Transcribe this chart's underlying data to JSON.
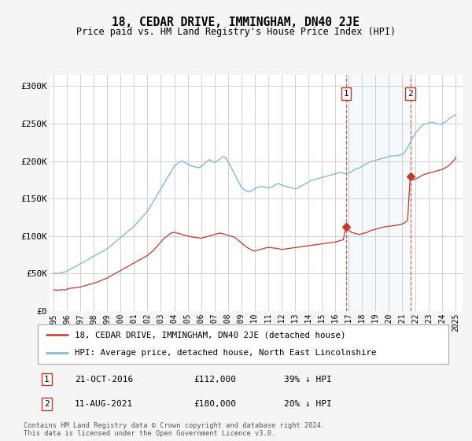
{
  "title": "18, CEDAR DRIVE, IMMINGHAM, DN40 2JE",
  "subtitle": "Price paid vs. HM Land Registry's House Price Index (HPI)",
  "yticks": [
    0,
    50000,
    100000,
    150000,
    200000,
    250000,
    300000
  ],
  "ytick_labels": [
    "£0",
    "£50K",
    "£100K",
    "£150K",
    "£200K",
    "£250K",
    "£300K"
  ],
  "ylim": [
    0,
    315000
  ],
  "xlim": [
    1994.7,
    2025.5
  ],
  "hpi_color": "#7ab3d4",
  "sale_color": "#c0392b",
  "background_color": "#f5f5f5",
  "plot_bg": "#ffffff",
  "grid_color": "#d0d0d0",
  "sale1_x": 2016.8,
  "sale1_y": 112000,
  "sale2_x": 2021.6,
  "sale2_y": 180000,
  "sale1_label": "1",
  "sale2_label": "2",
  "legend_line1": "18, CEDAR DRIVE, IMMINGHAM, DN40 2JE (detached house)",
  "legend_line2": "HPI: Average price, detached house, North East Lincolnshire",
  "annotation1": [
    "1",
    "21-OCT-2016",
    "£112,000",
    "39% ↓ HPI"
  ],
  "annotation2": [
    "2",
    "11-AUG-2021",
    "£180,000",
    "20% ↓ HPI"
  ],
  "footer": "Contains HM Land Registry data © Crown copyright and database right 2024.\nThis data is licensed under the Open Government Licence v3.0.",
  "hpi_x": [
    1995.0,
    1995.1,
    1995.2,
    1995.3,
    1995.4,
    1995.5,
    1995.6,
    1995.7,
    1995.8,
    1995.9,
    1996.0,
    1996.1,
    1996.2,
    1996.3,
    1996.4,
    1996.5,
    1996.6,
    1996.7,
    1996.8,
    1996.9,
    1997.0,
    1997.2,
    1997.4,
    1997.6,
    1997.8,
    1998.0,
    1998.2,
    1998.4,
    1998.6,
    1998.8,
    1999.0,
    1999.2,
    1999.4,
    1999.6,
    1999.8,
    2000.0,
    2000.2,
    2000.4,
    2000.6,
    2000.8,
    2001.0,
    2001.2,
    2001.4,
    2001.6,
    2001.8,
    2002.0,
    2002.2,
    2002.4,
    2002.6,
    2002.8,
    2003.0,
    2003.2,
    2003.4,
    2003.6,
    2003.8,
    2004.0,
    2004.2,
    2004.4,
    2004.6,
    2004.8,
    2005.0,
    2005.2,
    2005.4,
    2005.6,
    2005.8,
    2006.0,
    2006.2,
    2006.4,
    2006.6,
    2006.8,
    2007.0,
    2007.2,
    2007.4,
    2007.6,
    2007.8,
    2008.0,
    2008.2,
    2008.4,
    2008.6,
    2008.8,
    2009.0,
    2009.2,
    2009.4,
    2009.6,
    2009.8,
    2010.0,
    2010.2,
    2010.4,
    2010.6,
    2010.8,
    2011.0,
    2011.2,
    2011.4,
    2011.6,
    2011.8,
    2012.0,
    2012.2,
    2012.4,
    2012.6,
    2012.8,
    2013.0,
    2013.2,
    2013.4,
    2013.6,
    2013.8,
    2014.0,
    2014.2,
    2014.4,
    2014.6,
    2014.8,
    2015.0,
    2015.2,
    2015.4,
    2015.6,
    2015.8,
    2016.0,
    2016.2,
    2016.4,
    2016.6,
    2016.8,
    2017.0,
    2017.2,
    2017.4,
    2017.6,
    2017.8,
    2018.0,
    2018.2,
    2018.4,
    2018.6,
    2018.8,
    2019.0,
    2019.2,
    2019.4,
    2019.6,
    2019.8,
    2020.0,
    2020.2,
    2020.4,
    2020.6,
    2020.8,
    2021.0,
    2021.2,
    2021.4,
    2021.6,
    2021.8,
    2022.0,
    2022.2,
    2022.4,
    2022.6,
    2022.8,
    2023.0,
    2023.2,
    2023.4,
    2023.6,
    2023.8,
    2024.0,
    2024.2,
    2024.4,
    2024.6,
    2024.8,
    2025.0
  ],
  "hpi_y": [
    50000,
    50500,
    50200,
    49800,
    50100,
    50500,
    51000,
    51500,
    52000,
    52500,
    53000,
    54000,
    55000,
    56000,
    57000,
    58000,
    59000,
    60000,
    61000,
    62000,
    63000,
    65000,
    67000,
    69000,
    71000,
    73000,
    75000,
    77000,
    79000,
    81000,
    83000,
    86000,
    89000,
    92000,
    95000,
    98000,
    101000,
    104000,
    107000,
    110000,
    113000,
    117000,
    121000,
    125000,
    129000,
    133000,
    139000,
    145000,
    151000,
    157000,
    163000,
    169000,
    175000,
    181000,
    187000,
    193000,
    196000,
    199000,
    200000,
    198000,
    196000,
    194000,
    193000,
    192000,
    191000,
    193000,
    196000,
    199000,
    202000,
    200000,
    198000,
    200000,
    203000,
    206000,
    205000,
    200000,
    193000,
    186000,
    179000,
    172000,
    165000,
    162000,
    160000,
    159000,
    161000,
    163000,
    165000,
    166000,
    166000,
    165000,
    164000,
    165000,
    167000,
    169000,
    170000,
    168000,
    167000,
    166000,
    165000,
    164000,
    163000,
    164000,
    166000,
    168000,
    170000,
    172000,
    174000,
    175000,
    176000,
    177000,
    178000,
    179000,
    180000,
    181000,
    182000,
    183000,
    184000,
    185000,
    184000,
    183000,
    184000,
    186000,
    188000,
    190000,
    191000,
    193000,
    195000,
    197000,
    199000,
    200000,
    201000,
    202000,
    203000,
    204000,
    205000,
    206000,
    207000,
    207000,
    207000,
    208000,
    209000,
    212000,
    218000,
    225000,
    232000,
    238000,
    242000,
    246000,
    249000,
    250000,
    251000,
    252000,
    251000,
    250000,
    249000,
    250000,
    252000,
    255000,
    258000,
    260000,
    262000
  ],
  "sale_x": [
    1995.0,
    1995.1,
    1995.2,
    1995.3,
    1995.4,
    1995.5,
    1995.6,
    1995.7,
    1995.8,
    1995.9,
    1996.0,
    1996.2,
    1996.4,
    1996.6,
    1996.8,
    1997.0,
    1997.2,
    1997.4,
    1997.6,
    1997.8,
    1998.0,
    1998.2,
    1998.4,
    1998.6,
    1998.8,
    1999.0,
    1999.2,
    1999.4,
    1999.6,
    1999.8,
    2000.0,
    2000.2,
    2000.4,
    2000.6,
    2000.8,
    2001.0,
    2001.2,
    2001.4,
    2001.6,
    2001.8,
    2002.0,
    2002.2,
    2002.4,
    2002.6,
    2002.8,
    2003.0,
    2003.2,
    2003.4,
    2003.6,
    2003.8,
    2004.0,
    2004.2,
    2004.4,
    2004.6,
    2004.8,
    2005.0,
    2005.2,
    2005.4,
    2005.6,
    2005.8,
    2006.0,
    2006.2,
    2006.4,
    2006.6,
    2006.8,
    2007.0,
    2007.2,
    2007.4,
    2007.6,
    2007.8,
    2008.0,
    2008.2,
    2008.4,
    2008.6,
    2008.8,
    2009.0,
    2009.2,
    2009.4,
    2009.6,
    2009.8,
    2010.0,
    2010.2,
    2010.4,
    2010.6,
    2010.8,
    2011.0,
    2011.2,
    2011.4,
    2011.6,
    2011.8,
    2012.0,
    2012.2,
    2012.4,
    2012.6,
    2012.8,
    2013.0,
    2013.2,
    2013.4,
    2013.6,
    2013.8,
    2014.0,
    2014.2,
    2014.4,
    2014.6,
    2014.8,
    2015.0,
    2015.2,
    2015.4,
    2015.6,
    2015.8,
    2016.0,
    2016.2,
    2016.4,
    2016.6,
    2016.8,
    2017.0,
    2017.2,
    2017.4,
    2017.6,
    2017.8,
    2018.0,
    2018.2,
    2018.4,
    2018.6,
    2018.8,
    2019.0,
    2019.2,
    2019.4,
    2019.6,
    2019.8,
    2020.0,
    2020.2,
    2020.4,
    2020.6,
    2020.8,
    2021.0,
    2021.2,
    2021.4,
    2021.6,
    2021.8,
    2022.0,
    2022.2,
    2022.4,
    2022.6,
    2022.8,
    2023.0,
    2023.2,
    2023.4,
    2023.6,
    2023.8,
    2024.0,
    2024.2,
    2024.4,
    2024.6,
    2024.8,
    2025.0
  ],
  "sale_y": [
    28000,
    28200,
    27800,
    27500,
    27800,
    28000,
    28500,
    28200,
    27900,
    28100,
    29000,
    30000,
    30500,
    31000,
    31500,
    32000,
    33000,
    34000,
    35000,
    36000,
    37000,
    38000,
    39500,
    41000,
    42500,
    44000,
    46000,
    48000,
    50000,
    52000,
    54000,
    56000,
    58000,
    60000,
    62000,
    64000,
    66000,
    68000,
    70000,
    72000,
    74000,
    77000,
    80000,
    84000,
    88000,
    92000,
    96000,
    99000,
    102000,
    104000,
    105000,
    104000,
    103000,
    102000,
    101000,
    100000,
    99000,
    98500,
    98000,
    97500,
    97000,
    98000,
    99000,
    100000,
    101000,
    102000,
    103000,
    104000,
    103000,
    102000,
    101000,
    100000,
    99000,
    97000,
    94000,
    91000,
    88000,
    85000,
    83000,
    81000,
    80000,
    81000,
    82000,
    83000,
    84000,
    85000,
    84500,
    84000,
    83500,
    83000,
    82000,
    82500,
    83000,
    83500,
    84000,
    84500,
    85000,
    85500,
    86000,
    86500,
    87000,
    87500,
    88000,
    88500,
    89000,
    89500,
    90000,
    90500,
    91000,
    91500,
    92000,
    93000,
    94000,
    95000,
    112000,
    108000,
    105000,
    104000,
    103000,
    102000,
    103000,
    104000,
    105000,
    107000,
    108000,
    109000,
    110000,
    111000,
    112000,
    112500,
    113000,
    113500,
    114000,
    114500,
    115000,
    116000,
    118000,
    121000,
    180000,
    175000,
    176000,
    178000,
    180000,
    182000,
    183000,
    184000,
    185000,
    186000,
    187000,
    188000,
    189000,
    191000,
    193000,
    196000,
    200000,
    205000
  ]
}
